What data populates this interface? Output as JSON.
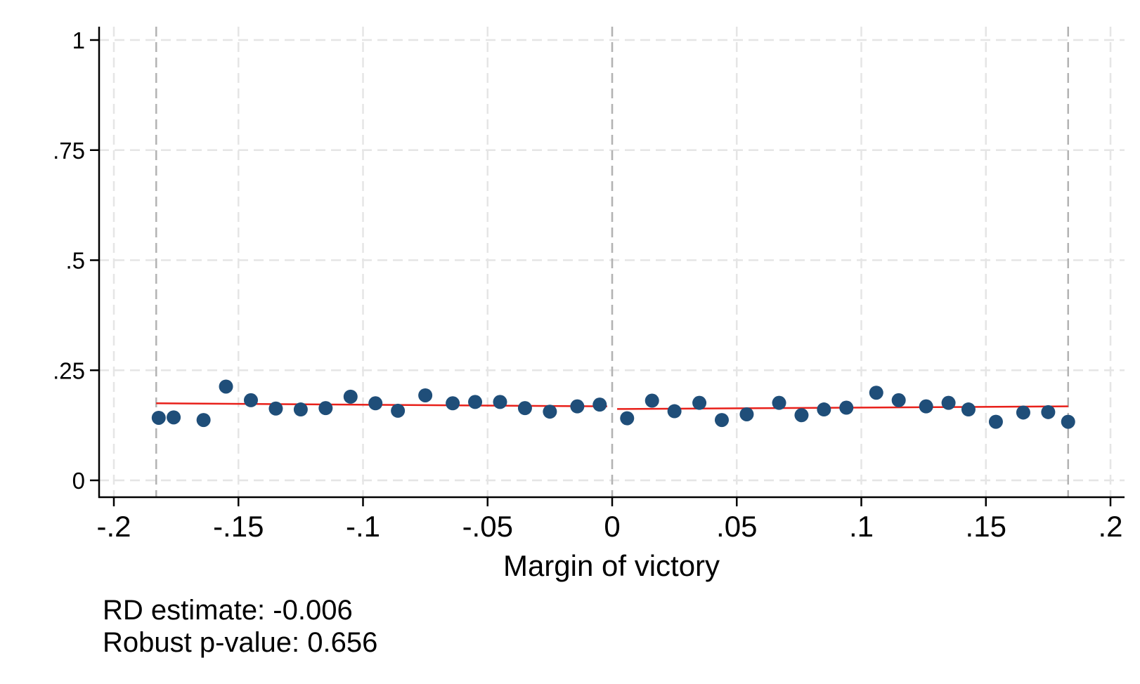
{
  "chart_data": {
    "type": "scatter",
    "title": "",
    "xlabel": "Margin of victory",
    "ylabel": "",
    "xlim": [
      -0.2,
      0.2
    ],
    "ylim": [
      0,
      1
    ],
    "xticks": [
      -0.2,
      -0.15,
      -0.1,
      -0.05,
      0,
      0.05,
      0.1,
      0.15,
      0.2
    ],
    "xtick_labels": [
      "-.2",
      "-.15",
      "-.1",
      "-.05",
      "0",
      ".05",
      ".1",
      ".15",
      ".2"
    ],
    "yticks": [
      0,
      0.25,
      0.5,
      0.75,
      1
    ],
    "ytick_labels": [
      "0",
      ".25",
      ".5",
      ".75",
      "1"
    ],
    "grid": true,
    "cutoff": 0,
    "bandwidth_lines": [
      -0.183,
      0.183
    ],
    "series": [
      {
        "marker": "circle",
        "x": [
          -0.182,
          -0.176,
          -0.164,
          -0.155,
          -0.145,
          -0.135,
          -0.125,
          -0.115,
          -0.105,
          -0.095,
          -0.086,
          -0.075,
          -0.064,
          -0.055,
          -0.045,
          -0.035,
          -0.025,
          -0.014,
          -0.005,
          0.006,
          0.016,
          0.025,
          0.035,
          0.044,
          0.054,
          0.067,
          0.076,
          0.085,
          0.094,
          0.106,
          0.115,
          0.126,
          0.135,
          0.143,
          0.154,
          0.165,
          0.175,
          0.183
        ],
        "y": [
          0.142,
          0.143,
          0.137,
          0.213,
          0.182,
          0.163,
          0.161,
          0.164,
          0.19,
          0.175,
          0.158,
          0.193,
          0.175,
          0.178,
          0.178,
          0.164,
          0.156,
          0.168,
          0.172,
          0.141,
          0.181,
          0.157,
          0.176,
          0.137,
          0.15,
          0.176,
          0.148,
          0.161,
          0.165,
          0.199,
          0.182,
          0.168,
          0.176,
          0.161,
          0.133,
          0.154,
          0.155,
          0.133
        ]
      }
    ],
    "fit_lines": [
      {
        "x": [
          -0.183,
          -0.002
        ],
        "y": [
          0.175,
          0.168
        ]
      },
      {
        "x": [
          0.002,
          0.183
        ],
        "y": [
          0.162,
          0.168
        ]
      }
    ],
    "colors": {
      "marker": "#1f4e79",
      "fit": "#e8201a",
      "grid": "#e5e5e5",
      "reference": "#b3b3b3",
      "axis": "#000000"
    },
    "annotations": [
      "RD estimate: -0.006",
      "Robust p-value: 0.656"
    ]
  }
}
